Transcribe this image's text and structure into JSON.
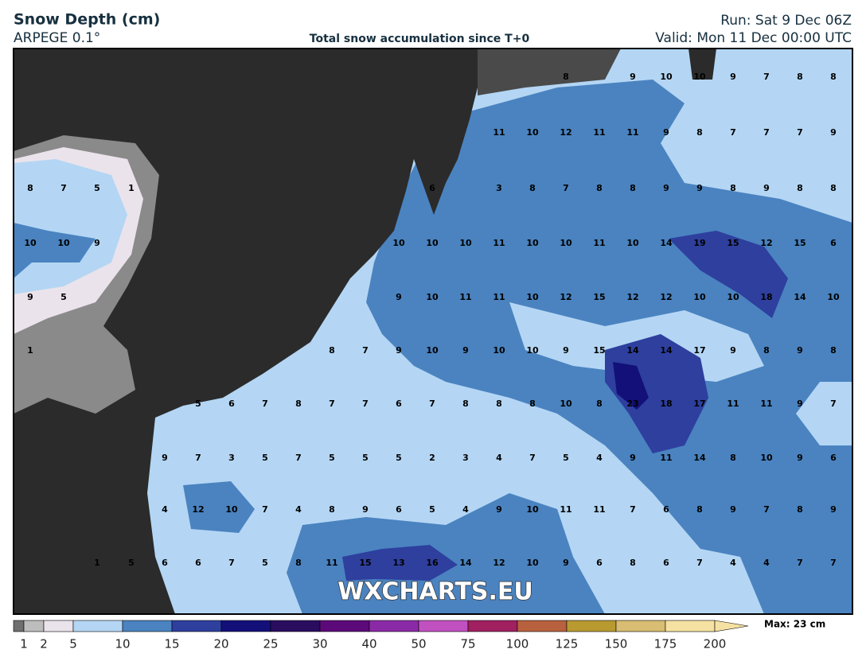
{
  "header": {
    "title": "Snow Depth (cm)",
    "model": "ARPEGE 0.1°",
    "subtitle": "Total snow accumulation since T+0",
    "run": "Run: Sat 9 Dec 06Z",
    "valid": "Valid: Mon 11 Dec 00:00 UTC"
  },
  "watermark": "WXCHARTS.EU",
  "max_label": "Max: 23 cm",
  "grid": {
    "rows": [
      [
        null,
        null,
        null,
        null,
        null,
        null,
        null,
        null,
        null,
        null,
        null,
        null,
        null,
        null,
        null,
        null,
        8,
        null,
        9,
        10,
        10,
        9,
        7,
        8,
        8
      ],
      [
        null,
        null,
        null,
        null,
        null,
        null,
        null,
        null,
        null,
        null,
        null,
        null,
        null,
        null,
        11,
        10,
        12,
        11,
        11,
        9,
        8,
        7,
        7,
        7,
        9
      ],
      [
        8,
        7,
        5,
        1,
        null,
        null,
        null,
        null,
        null,
        null,
        null,
        null,
        6,
        null,
        3,
        8,
        7,
        8,
        8,
        9,
        9,
        8,
        9,
        8,
        8
      ],
      [
        10,
        10,
        9,
        null,
        null,
        null,
        null,
        null,
        null,
        null,
        null,
        10,
        10,
        10,
        11,
        10,
        10,
        11,
        10,
        14,
        19,
        15,
        12,
        15,
        6
      ],
      [
        9,
        5,
        null,
        null,
        null,
        null,
        null,
        null,
        null,
        null,
        null,
        9,
        10,
        11,
        11,
        10,
        12,
        15,
        12,
        12,
        10,
        10,
        18,
        14,
        10
      ],
      [
        1,
        null,
        null,
        null,
        null,
        null,
        null,
        null,
        null,
        8,
        7,
        9,
        10,
        9,
        10,
        10,
        9,
        15,
        14,
        14,
        17,
        9,
        8,
        9,
        8
      ],
      [
        null,
        null,
        null,
        null,
        null,
        5,
        6,
        7,
        8,
        7,
        7,
        6,
        7,
        8,
        8,
        8,
        10,
        8,
        23,
        18,
        17,
        11,
        11,
        9,
        7
      ],
      [
        null,
        null,
        null,
        null,
        9,
        7,
        3,
        5,
        7,
        5,
        5,
        5,
        2,
        3,
        4,
        7,
        5,
        4,
        9,
        11,
        14,
        8,
        10,
        9,
        6
      ],
      [
        null,
        null,
        null,
        null,
        4,
        12,
        10,
        7,
        4,
        8,
        9,
        6,
        5,
        4,
        9,
        10,
        11,
        11,
        7,
        6,
        8,
        9,
        7,
        8,
        9
      ],
      [
        null,
        null,
        1,
        5,
        6,
        6,
        7,
        5,
        8,
        11,
        15,
        13,
        16,
        14,
        12,
        10,
        9,
        6,
        8,
        6,
        7,
        4,
        4,
        7,
        7
      ]
    ]
  },
  "colorbar": {
    "levels": [
      1,
      2,
      5,
      10,
      15,
      20,
      25,
      30,
      40,
      50,
      75,
      100,
      125,
      150,
      175,
      200
    ],
    "colors": [
      "#6f6f6f",
      "#bdbdbd",
      "#ebe3eb",
      "#b4d6f4",
      "#4a83c0",
      "#2e3f9e",
      "#13107a",
      "#2a0d5e",
      "#5c0a7a",
      "#8b2aa7",
      "#c150c0",
      "#a02060",
      "#b8613f",
      "#b89a30",
      "#d8bd72",
      "#f5e1a2"
    ]
  }
}
